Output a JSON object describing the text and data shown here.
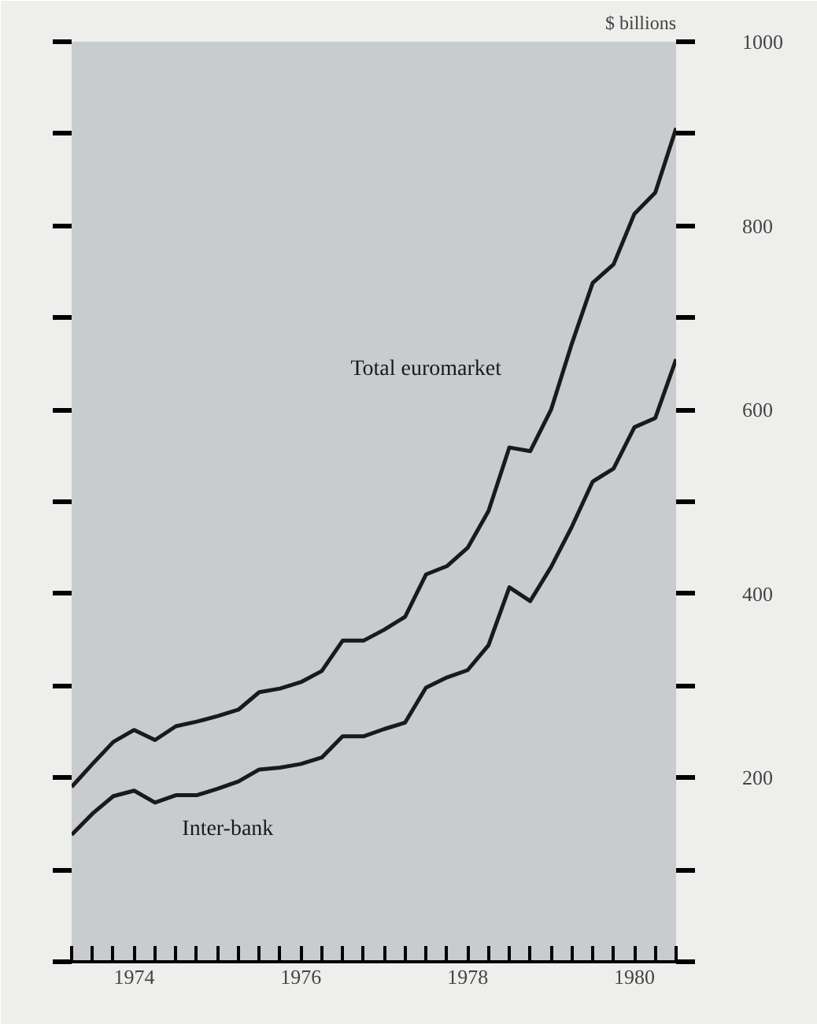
{
  "chart_data": {
    "type": "line",
    "ylabel": "$ billions",
    "x": [
      1973.75,
      1974.0,
      1974.25,
      1974.5,
      1974.75,
      1975.0,
      1975.25,
      1975.5,
      1975.75,
      1976.0,
      1976.25,
      1976.5,
      1976.75,
      1977.0,
      1977.25,
      1977.5,
      1977.75,
      1978.0,
      1978.25,
      1978.5,
      1978.75,
      1979.0,
      1979.25,
      1979.5,
      1979.75,
      1980.0,
      1980.25,
      1980.5,
      1980.75,
      1981.0
    ],
    "series": [
      {
        "name": "Total euromarket",
        "color": "#1a1a1a",
        "values": [
          190,
          215,
          239,
          252,
          241,
          256,
          261,
          267,
          274,
          293,
          297,
          304,
          316,
          349,
          349,
          361,
          375,
          421,
          430,
          450,
          490,
          559,
          555,
          600,
          672,
          738,
          758,
          813,
          836,
          906
        ]
      },
      {
        "name": "Inter-bank",
        "color": "#1a1a1a",
        "values": [
          138,
          161,
          180,
          186,
          173,
          181,
          181,
          188,
          196,
          209,
          211,
          215,
          222,
          245,
          245,
          253,
          260,
          298,
          309,
          317,
          344,
          407,
          392,
          429,
          473,
          522,
          536,
          581,
          591,
          655
        ]
      }
    ],
    "xlim": [
      1973.75,
      1981.0
    ],
    "xticks": [
      {
        "value": 1973.75,
        "label": null
      },
      {
        "value": 1974,
        "label": null
      },
      {
        "value": 1974.25,
        "label": null
      },
      {
        "value": 1974.5,
        "label": "1974"
      },
      {
        "value": 1974.75,
        "label": null
      },
      {
        "value": 1975,
        "label": null
      },
      {
        "value": 1975.25,
        "label": null
      },
      {
        "value": 1975.5,
        "label": null
      },
      {
        "value": 1975.75,
        "label": null
      },
      {
        "value": 1976,
        "label": null
      },
      {
        "value": 1976.25,
        "label": null
      },
      {
        "value": 1976.5,
        "label": "1976"
      },
      {
        "value": 1976.75,
        "label": null
      },
      {
        "value": 1977,
        "label": null
      },
      {
        "value": 1977.25,
        "label": null
      },
      {
        "value": 1977.5,
        "label": null
      },
      {
        "value": 1977.75,
        "label": null
      },
      {
        "value": 1978,
        "label": null
      },
      {
        "value": 1978.25,
        "label": null
      },
      {
        "value": 1978.5,
        "label": "1978"
      },
      {
        "value": 1978.75,
        "label": null
      },
      {
        "value": 1979,
        "label": null
      },
      {
        "value": 1979.25,
        "label": null
      },
      {
        "value": 1979.5,
        "label": null
      },
      {
        "value": 1979.75,
        "label": null
      },
      {
        "value": 1980,
        "label": null
      },
      {
        "value": 1980.25,
        "label": null
      },
      {
        "value": 1980.5,
        "label": "1980"
      },
      {
        "value": 1980.75,
        "label": null
      },
      {
        "value": 1981,
        "label": null
      }
    ],
    "ylim": [
      0,
      1000
    ],
    "yticks": [
      {
        "value": 0,
        "label": null
      },
      {
        "value": 100,
        "label": null
      },
      200,
      {
        "value": 300,
        "label": null
      },
      400,
      {
        "value": 500,
        "label": null
      },
      600,
      {
        "value": 700,
        "label": null
      },
      800,
      {
        "value": 900,
        "label": null
      },
      1000
    ],
    "grid": false,
    "marker": "none",
    "line_style": "solid"
  }
}
